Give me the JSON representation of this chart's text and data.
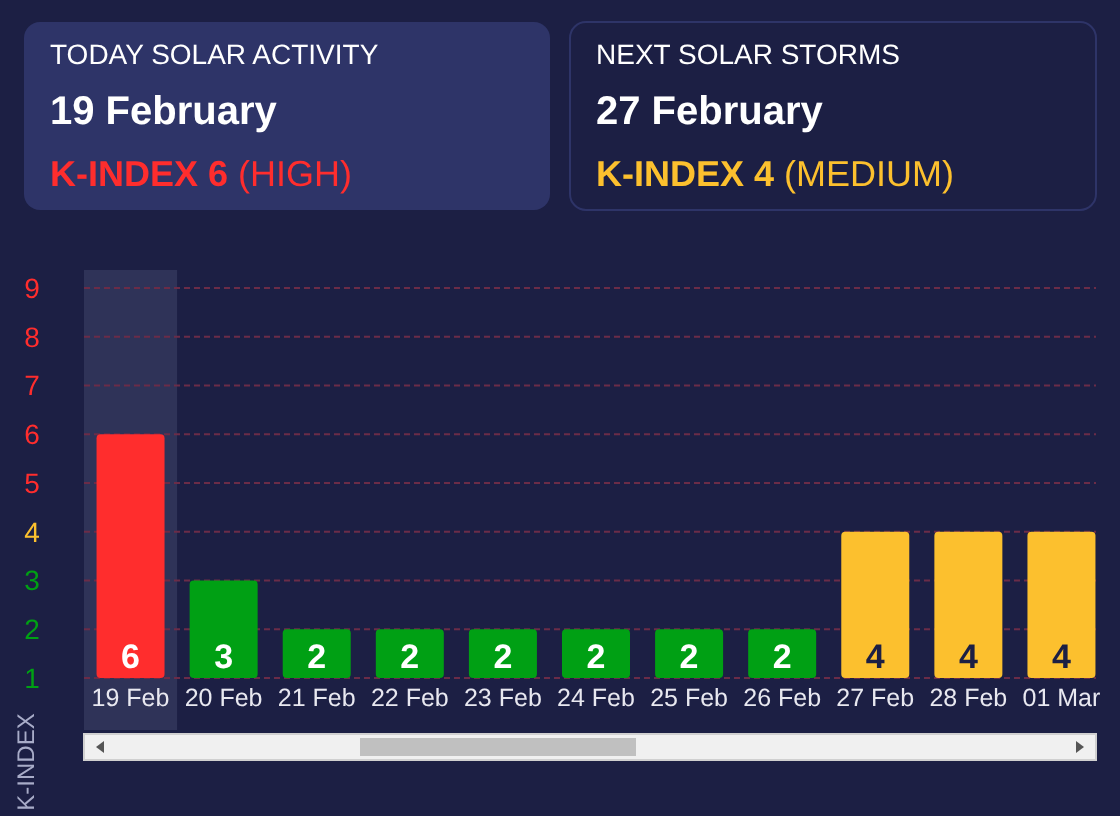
{
  "chart_data": [
    {
      "type": "other",
      "title": "TODAY SOLAR ACTIVITY",
      "subtitle": "19 February",
      "annotations": [
        "K-INDEX 6",
        "(HIGH)"
      ],
      "color": "#ff2d2d"
    },
    {
      "type": "other",
      "title": "NEXT SOLAR STORMS",
      "subtitle": "27 February",
      "annotations": [
        "K-INDEX 4",
        "(MEDIUM)"
      ],
      "color": "#fcc02e"
    },
    {
      "type": "bar",
      "ylabel": "K-INDEX",
      "categories": [
        "19 Feb",
        "20 Feb",
        "21 Feb",
        "22 Feb",
        "23 Feb",
        "24 Feb",
        "25 Feb",
        "26 Feb",
        "27 Feb",
        "28 Feb",
        "01 Mar"
      ],
      "values": [
        6,
        3,
        2,
        2,
        2,
        2,
        2,
        2,
        4,
        4,
        4
      ],
      "data_labels": true,
      "colors": [
        "#ff2d2d",
        "#00a014",
        "#00a014",
        "#00a014",
        "#00a014",
        "#00a014",
        "#00a014",
        "#00a014",
        "#fcc02e",
        "#fcc02e",
        "#fcc02e"
      ],
      "ylim": [
        1,
        9
      ],
      "yticks": [
        1,
        2,
        3,
        4,
        5,
        6,
        7,
        8,
        9
      ],
      "grid": "y",
      "bands": [
        {
          "axis": "x",
          "from": "19 Feb",
          "to": "19 Feb",
          "color": "#2f3358"
        }
      ]
    }
  ]
}
